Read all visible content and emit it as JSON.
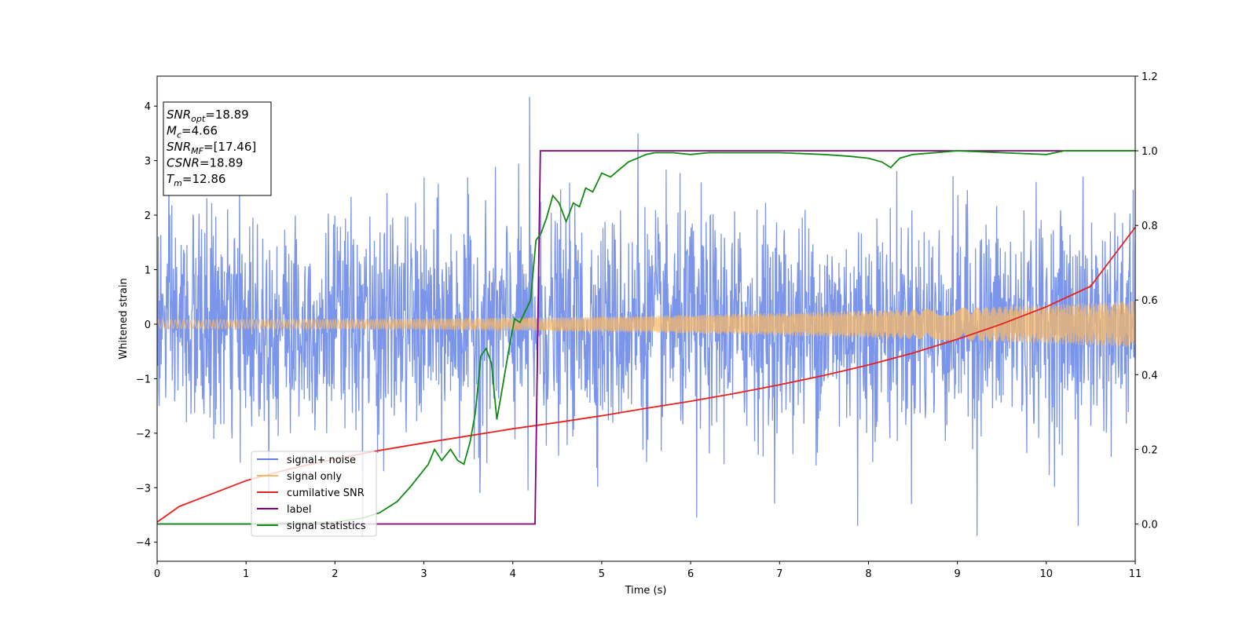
{
  "chart_data": {
    "type": "line",
    "xlabel": "Time (s)",
    "ylabel": "Whitened strain",
    "xlim": [
      0,
      11
    ],
    "ylim": [
      -4.35,
      4.55
    ],
    "y2lim": [
      -0.1,
      1.2
    ],
    "x_ticks": [
      "0",
      "1",
      "2",
      "3",
      "4",
      "5",
      "6",
      "7",
      "8",
      "9",
      "10",
      "11"
    ],
    "y_ticks": [
      "−4",
      "−3",
      "−2",
      "−1",
      "0",
      "1",
      "2",
      "3",
      "4"
    ],
    "y2_ticks": [
      "0.0",
      "0.2",
      "0.4",
      "0.6",
      "0.8",
      "1.0",
      "1.2"
    ],
    "legend_position": "lower-left",
    "info_box": {
      "lines": [
        {
          "base": "SNR",
          "sub": "opt",
          "value": "=18.89"
        },
        {
          "base": "M",
          "sub": "c",
          "value": "=4.66"
        },
        {
          "base": "SNR",
          "sub": "MF",
          "value": "=[17.46]"
        },
        {
          "base": "CSNR",
          "sub": "",
          "value": "=18.89"
        },
        {
          "base": "T",
          "sub": "m",
          "value": "=12.86"
        }
      ]
    },
    "colors": {
      "noise": "#6482e6",
      "signal": "#f5b868",
      "snr": "#e8211d",
      "label": "#800080",
      "stats": "#138a13"
    },
    "series": [
      {
        "name": "signal+ noise",
        "axis": "left",
        "description_envelope": {
          "typical_amplitude": 1.6,
          "max_peak": 4.17,
          "min_peak": -3.9
        }
      },
      {
        "name": "signal only",
        "axis": "left",
        "amplitude_start": 0.08,
        "amplitude_end": 0.42
      },
      {
        "name": "cumilative SNR",
        "axis": "right",
        "x": [
          0,
          0.25,
          0.5,
          1,
          1.5,
          2,
          2.5,
          3,
          3.5,
          4,
          4.5,
          5,
          5.5,
          6,
          6.5,
          7,
          7.5,
          8,
          8.5,
          9,
          9.5,
          10,
          10.5,
          11
        ],
        "values": [
          0.005,
          0.047,
          0.07,
          0.116,
          0.148,
          0.174,
          0.197,
          0.217,
          0.236,
          0.255,
          0.272,
          0.29,
          0.31,
          0.329,
          0.35,
          0.373,
          0.398,
          0.426,
          0.458,
          0.495,
          0.536,
          0.582,
          0.637,
          0.795
        ]
      },
      {
        "name": "label",
        "axis": "right",
        "x": [
          0,
          4.25,
          4.31,
          11
        ],
        "values": [
          0,
          0,
          1,
          1
        ]
      },
      {
        "name": "signal statistics",
        "axis": "right",
        "x": [
          0,
          1.0,
          2.0,
          2.3,
          2.5,
          2.7,
          2.85,
          2.95,
          3.05,
          3.12,
          3.2,
          3.3,
          3.38,
          3.45,
          3.52,
          3.58,
          3.64,
          3.7,
          3.76,
          3.82,
          3.88,
          3.95,
          4.02,
          4.08,
          4.14,
          4.2,
          4.26,
          4.32,
          4.38,
          4.45,
          4.52,
          4.6,
          4.68,
          4.75,
          4.82,
          4.9,
          5.0,
          5.1,
          5.2,
          5.3,
          5.4,
          5.5,
          5.6,
          5.8,
          6.0,
          6.2,
          6.5,
          7.0,
          7.5,
          7.8,
          8.0,
          8.15,
          8.25,
          8.35,
          8.5,
          9.0,
          9.5,
          10.0,
          10.2,
          11.0
        ],
        "values": [
          0.0,
          0.0,
          0.005,
          0.015,
          0.03,
          0.06,
          0.1,
          0.13,
          0.16,
          0.2,
          0.17,
          0.2,
          0.17,
          0.16,
          0.22,
          0.3,
          0.45,
          0.47,
          0.43,
          0.28,
          0.36,
          0.46,
          0.55,
          0.54,
          0.57,
          0.6,
          0.76,
          0.78,
          0.82,
          0.88,
          0.86,
          0.81,
          0.86,
          0.85,
          0.9,
          0.89,
          0.94,
          0.93,
          0.95,
          0.97,
          0.98,
          0.99,
          0.995,
          0.995,
          0.99,
          0.995,
          0.995,
          0.995,
          0.99,
          0.985,
          0.98,
          0.97,
          0.955,
          0.98,
          0.99,
          1.0,
          0.995,
          0.99,
          1.0,
          1.0
        ]
      }
    ]
  }
}
